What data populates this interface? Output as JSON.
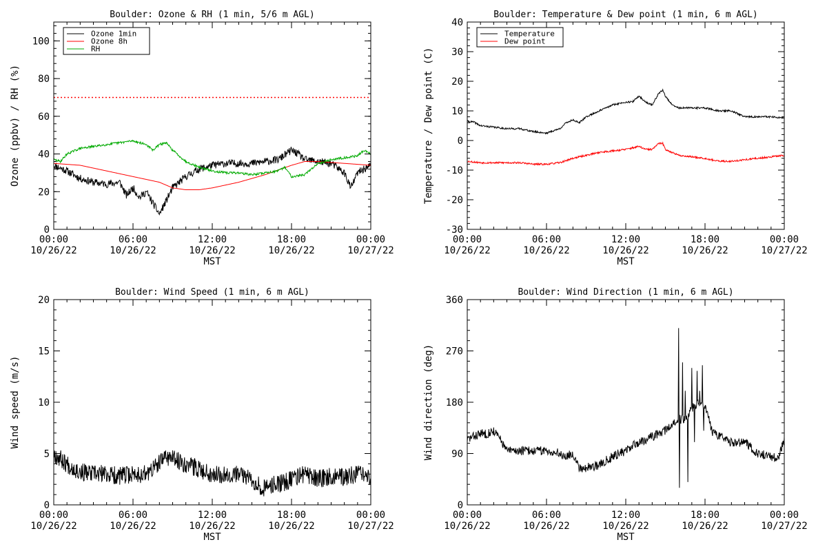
{
  "chart_data": [
    {
      "type": "line",
      "title": "Boulder: Ozone & RH (1 min, 5/6 m AGL)",
      "xlabel": "MST",
      "ylabel": "Ozone (ppbv) / RH (%)",
      "xlim": [
        "10/26/22 00:00",
        "10/27/22 00:00"
      ],
      "ylim": [
        0,
        110
      ],
      "yticks": [
        0,
        20,
        40,
        60,
        80,
        100
      ],
      "xticks": [
        [
          "00:00",
          "10/26/22"
        ],
        [
          "06:00",
          "10/26/22"
        ],
        [
          "12:00",
          "10/26/22"
        ],
        [
          "18:00",
          "10/26/22"
        ],
        [
          "00:00",
          "10/27/22"
        ]
      ],
      "legend": "top-left",
      "reference_line": {
        "y": 70,
        "style": "dotted",
        "color": "#ff0000"
      },
      "series": [
        {
          "name": "Ozone 1min",
          "color": "#000000",
          "noise": 2.0,
          "seed": 11,
          "time_h": [
            0,
            1,
            2,
            3,
            4,
            5,
            5.5,
            6,
            6.5,
            7,
            7.5,
            8,
            8.5,
            9,
            10,
            11,
            12,
            13,
            14,
            15,
            16,
            17,
            18,
            18.5,
            19,
            20,
            21,
            22,
            22.5,
            23,
            24
          ],
          "values": [
            34,
            31,
            27,
            25,
            24,
            25,
            18,
            22,
            17,
            20,
            14,
            8,
            15,
            22,
            28,
            32,
            34,
            35,
            35,
            35,
            36,
            37,
            42,
            40,
            37,
            36,
            35,
            30,
            22,
            30,
            34
          ]
        },
        {
          "name": "Ozone 8h",
          "color": "#ff0000",
          "noise": 0,
          "time_h": [
            0,
            2,
            4,
            6,
            8,
            9,
            10,
            11,
            12,
            14,
            16,
            18,
            19,
            20,
            22,
            24
          ],
          "values": [
            35,
            34,
            31,
            28,
            25,
            22,
            21,
            21,
            22,
            25,
            29,
            34,
            36,
            36,
            35,
            34
          ]
        },
        {
          "name": "RH",
          "color": "#00aa00",
          "noise": 0.6,
          "seed": 29,
          "time_h": [
            0,
            0.5,
            1,
            2,
            3,
            4,
            5,
            6,
            7,
            7.5,
            8,
            8.5,
            9,
            10,
            11,
            12,
            13,
            14,
            15,
            16,
            17,
            17.5,
            18,
            19,
            20,
            21,
            22,
            23,
            23.5,
            24
          ],
          "values": [
            37,
            36,
            40,
            43,
            44,
            45,
            46,
            47,
            45,
            42,
            45,
            46,
            42,
            36,
            33,
            31,
            30,
            30,
            29,
            30,
            31,
            33,
            28,
            29,
            35,
            37,
            38,
            39,
            42,
            40
          ]
        }
      ]
    },
    {
      "type": "line",
      "title": "Boulder: Temperature & Dew point (1 min, 6 m AGL)",
      "xlabel": "MST",
      "ylabel": "Temperature / Dew point (C)",
      "xlim": [
        "10/26/22 00:00",
        "10/27/22 00:00"
      ],
      "ylim": [
        -30,
        40
      ],
      "yticks": [
        -30,
        -20,
        -10,
        0,
        10,
        20,
        30,
        40
      ],
      "xticks": [
        [
          "00:00",
          "10/26/22"
        ],
        [
          "06:00",
          "10/26/22"
        ],
        [
          "12:00",
          "10/26/22"
        ],
        [
          "18:00",
          "10/26/22"
        ],
        [
          "00:00",
          "10/27/22"
        ]
      ],
      "legend": "top-left",
      "series": [
        {
          "name": "Temperature",
          "color": "#000000",
          "noise": 0.3,
          "seed": 41,
          "time_h": [
            0,
            0.5,
            1,
            2,
            3,
            4,
            5,
            6,
            7,
            7.5,
            8,
            8.5,
            9,
            10,
            11,
            12,
            12.5,
            13,
            13.5,
            14,
            14.5,
            14.8,
            15,
            15.5,
            16,
            17,
            18,
            19,
            20,
            21,
            22,
            23,
            24
          ],
          "values": [
            6.5,
            6.2,
            5,
            4.5,
            4,
            4,
            3,
            2.5,
            4,
            6,
            7,
            6,
            8,
            10,
            12,
            13,
            13,
            15,
            13,
            12,
            16,
            17,
            15,
            12,
            11,
            11,
            11,
            10,
            10,
            8,
            8,
            8,
            7.5
          ]
        },
        {
          "name": "Dew point",
          "color": "#ff0000",
          "noise": 0.3,
          "seed": 53,
          "time_h": [
            0,
            1,
            2,
            3,
            4,
            5,
            6,
            7,
            8,
            9,
            10,
            11,
            12,
            13,
            13.5,
            14,
            14.5,
            14.8,
            15,
            15.5,
            16,
            17,
            18,
            19,
            20,
            21,
            22,
            23,
            24
          ],
          "values": [
            -7,
            -7.5,
            -7.5,
            -7.5,
            -7.5,
            -8,
            -8,
            -7.5,
            -6,
            -5,
            -4,
            -3.5,
            -3,
            -2,
            -3,
            -3,
            -1,
            -1,
            -3,
            -4,
            -5,
            -5.5,
            -6,
            -7,
            -7,
            -6.5,
            -6,
            -5.5,
            -5
          ]
        }
      ]
    },
    {
      "type": "line",
      "title": "Boulder: Wind Speed (1 min, 6 m AGL)",
      "xlabel": "MST",
      "ylabel": "Wind speed (m/s)",
      "xlim": [
        "10/26/22 00:00",
        "10/27/22 00:00"
      ],
      "ylim": [
        0,
        20
      ],
      "yticks": [
        0,
        5,
        10,
        15,
        20
      ],
      "xticks": [
        [
          "00:00",
          "10/26/22"
        ],
        [
          "06:00",
          "10/26/22"
        ],
        [
          "12:00",
          "10/26/22"
        ],
        [
          "18:00",
          "10/26/22"
        ],
        [
          "00:00",
          "10/27/22"
        ]
      ],
      "series": [
        {
          "name": "",
          "color": "#000000",
          "noise": 0.9,
          "seed": 67,
          "time_h": [
            0,
            0.5,
            1,
            2,
            3,
            4,
            5,
            6,
            7,
            8,
            8.5,
            9,
            10,
            11,
            12,
            13,
            14,
            15,
            16,
            16.5,
            17,
            18,
            19,
            20,
            21,
            22,
            23,
            24
          ],
          "values": [
            5,
            4.5,
            4,
            3.2,
            3,
            3,
            2.8,
            3,
            3,
            4,
            4.8,
            4.5,
            4,
            3.5,
            3,
            3,
            3,
            2.5,
            1.5,
            2,
            2,
            2.5,
            3,
            2.5,
            2.8,
            2.7,
            3,
            2.5
          ]
        }
      ]
    },
    {
      "type": "line",
      "title": "Boulder: Wind Direction (1 min, 6 m AGL)",
      "xlabel": "MST",
      "ylabel": "Wind direction (deg)",
      "xlim": [
        "10/26/22 00:00",
        "10/27/22 00:00"
      ],
      "ylim": [
        0,
        360
      ],
      "yticks": [
        0,
        90,
        180,
        270,
        360
      ],
      "xticks": [
        [
          "00:00",
          "10/26/22"
        ],
        [
          "06:00",
          "10/26/22"
        ],
        [
          "12:00",
          "10/26/22"
        ],
        [
          "18:00",
          "10/26/22"
        ],
        [
          "00:00",
          "10/27/22"
        ]
      ],
      "series": [
        {
          "name": "",
          "color": "#000000",
          "noise": 8,
          "seed": 83,
          "spikes": [
            [
              16.0,
              310
            ],
            [
              16.05,
              30
            ],
            [
              16.3,
              250
            ],
            [
              16.5,
              200
            ],
            [
              16.7,
              40
            ],
            [
              17.0,
              240
            ],
            [
              17.2,
              110
            ],
            [
              17.4,
              235
            ],
            [
              17.6,
              200
            ],
            [
              17.8,
              245
            ],
            [
              17.9,
              130
            ]
          ],
          "time_h": [
            0,
            0.5,
            1,
            1.5,
            2,
            2.5,
            3,
            4,
            5,
            6,
            7,
            7.5,
            8,
            8.5,
            9,
            10,
            11,
            12,
            13,
            14,
            15,
            15.5,
            16,
            16.5,
            17,
            17.5,
            18,
            18.5,
            19,
            20,
            21,
            22,
            23,
            23.5,
            24
          ],
          "values": [
            115,
            120,
            125,
            125,
            130,
            115,
            95,
            95,
            95,
            95,
            90,
            85,
            90,
            65,
            65,
            70,
            85,
            95,
            110,
            120,
            130,
            140,
            150,
            150,
            170,
            180,
            175,
            130,
            120,
            110,
            110,
            90,
            85,
            80,
            115
          ]
        }
      ]
    }
  ]
}
